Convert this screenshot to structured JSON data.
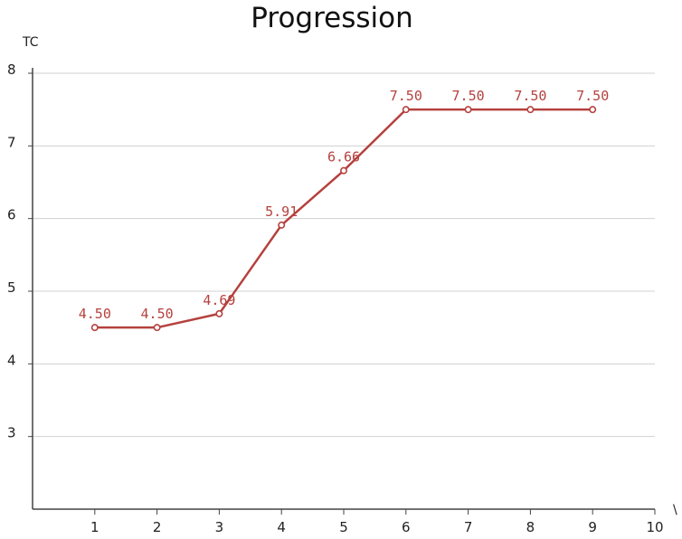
{
  "chart_data": {
    "type": "line",
    "title": "Progression",
    "ylabel": "TC",
    "xlabel": "\\",
    "xlim": [
      0,
      10
    ],
    "ylim": [
      2,
      8
    ],
    "x_ticks": [
      1,
      2,
      3,
      4,
      5,
      6,
      7,
      8,
      9,
      10
    ],
    "y_ticks": [
      3,
      4,
      5,
      6,
      7,
      8
    ],
    "grid": true,
    "series": [
      {
        "x": [
          1,
          2,
          3,
          4,
          5,
          6,
          7,
          8,
          9
        ],
        "values": [
          4.5,
          4.5,
          4.69,
          5.91,
          6.66,
          7.5,
          7.5,
          7.5,
          7.5
        ],
        "labels": [
          "4.50",
          "4.50",
          "4.69",
          "5.91",
          "6.66",
          "7.50",
          "7.50",
          "7.50",
          "7.50"
        ],
        "color": "#b5413e"
      }
    ],
    "colors": {
      "grid": "#d0d0d0",
      "axis": "#444444"
    }
  }
}
